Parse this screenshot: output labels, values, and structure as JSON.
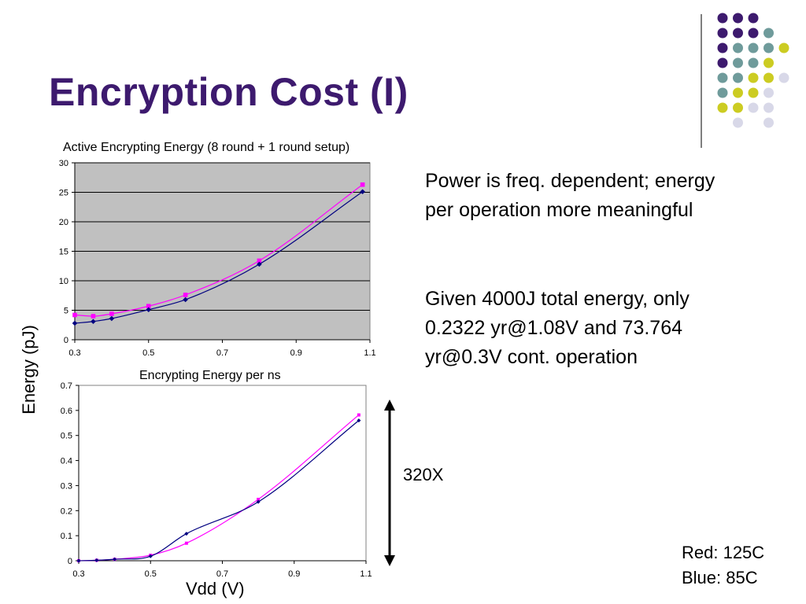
{
  "slide": {
    "title": "Encryption Cost (I)",
    "paragraph1": "Power is freq. dependent; energy per operation more meaningful",
    "paragraph2": "Given 4000J total energy, only 0.2322 yr@1.08V and 73.764 yr@0.3V cont. operation",
    "ratio_label": "320X",
    "legend_red": "Red: 125C",
    "legend_blue": "Blue: 85C",
    "shared_ylabel": "Energy (pJ)",
    "shared_xlabel": "Vdd (V)",
    "colors": {
      "title": "#3d1a6e",
      "series_red": "#ff00ff",
      "series_blue": "#000080",
      "plot_bg": "#c0c0c0",
      "dot_purple": "#3d1a6e",
      "dot_teal": "#6f9b9b",
      "dot_yellow": "#cccc22",
      "dot_lavender": "#d8d8e8"
    }
  },
  "chart_data": [
    {
      "type": "line",
      "title": "Active Encrypting Energy (8 round + 1 round setup)",
      "xlabel": "Vdd (V)",
      "ylabel": "Energy (pJ)",
      "xlim": [
        0.3,
        1.1
      ],
      "ylim": [
        0,
        30
      ],
      "xticks": [
        0.3,
        0.5,
        0.7,
        0.9,
        1.1
      ],
      "yticks": [
        0,
        5,
        10,
        15,
        20,
        25,
        30
      ],
      "grid": true,
      "series": [
        {
          "color": "#ff00ff",
          "marker": "square",
          "x": [
            0.3,
            0.35,
            0.4,
            0.5,
            0.6,
            0.8,
            1.08
          ],
          "y": [
            4.2,
            4.0,
            4.4,
            5.7,
            7.6,
            13.4,
            26.3
          ]
        },
        {
          "color": "#000080",
          "marker": "diamond",
          "x": [
            0.3,
            0.35,
            0.4,
            0.5,
            0.6,
            0.8,
            1.08
          ],
          "y": [
            2.8,
            3.1,
            3.6,
            5.1,
            6.8,
            12.8,
            25.1
          ]
        }
      ]
    },
    {
      "type": "line",
      "title": "Encrypting Energy per ns",
      "xlabel": "Vdd (V)",
      "ylabel": "Energy (pJ)",
      "xlim": [
        0.3,
        1.1
      ],
      "ylim": [
        0,
        0.7
      ],
      "xticks": [
        0.3,
        0.5,
        0.7,
        0.9,
        1.1
      ],
      "yticks": [
        0,
        0.1,
        0.2,
        0.3,
        0.4,
        0.5,
        0.6,
        0.7
      ],
      "grid": false,
      "series": [
        {
          "color": "#ff00ff",
          "marker": "square",
          "x": [
            0.3,
            0.35,
            0.4,
            0.5,
            0.6,
            0.8,
            1.08
          ],
          "y": [
            0.0,
            0.002,
            0.006,
            0.022,
            0.07,
            0.245,
            0.582
          ]
        },
        {
          "color": "#000080",
          "marker": "diamond",
          "x": [
            0.3,
            0.35,
            0.4,
            0.5,
            0.6,
            0.8,
            1.08
          ],
          "y": [
            0.0,
            0.002,
            0.006,
            0.018,
            0.108,
            0.235,
            0.56
          ]
        }
      ]
    }
  ]
}
